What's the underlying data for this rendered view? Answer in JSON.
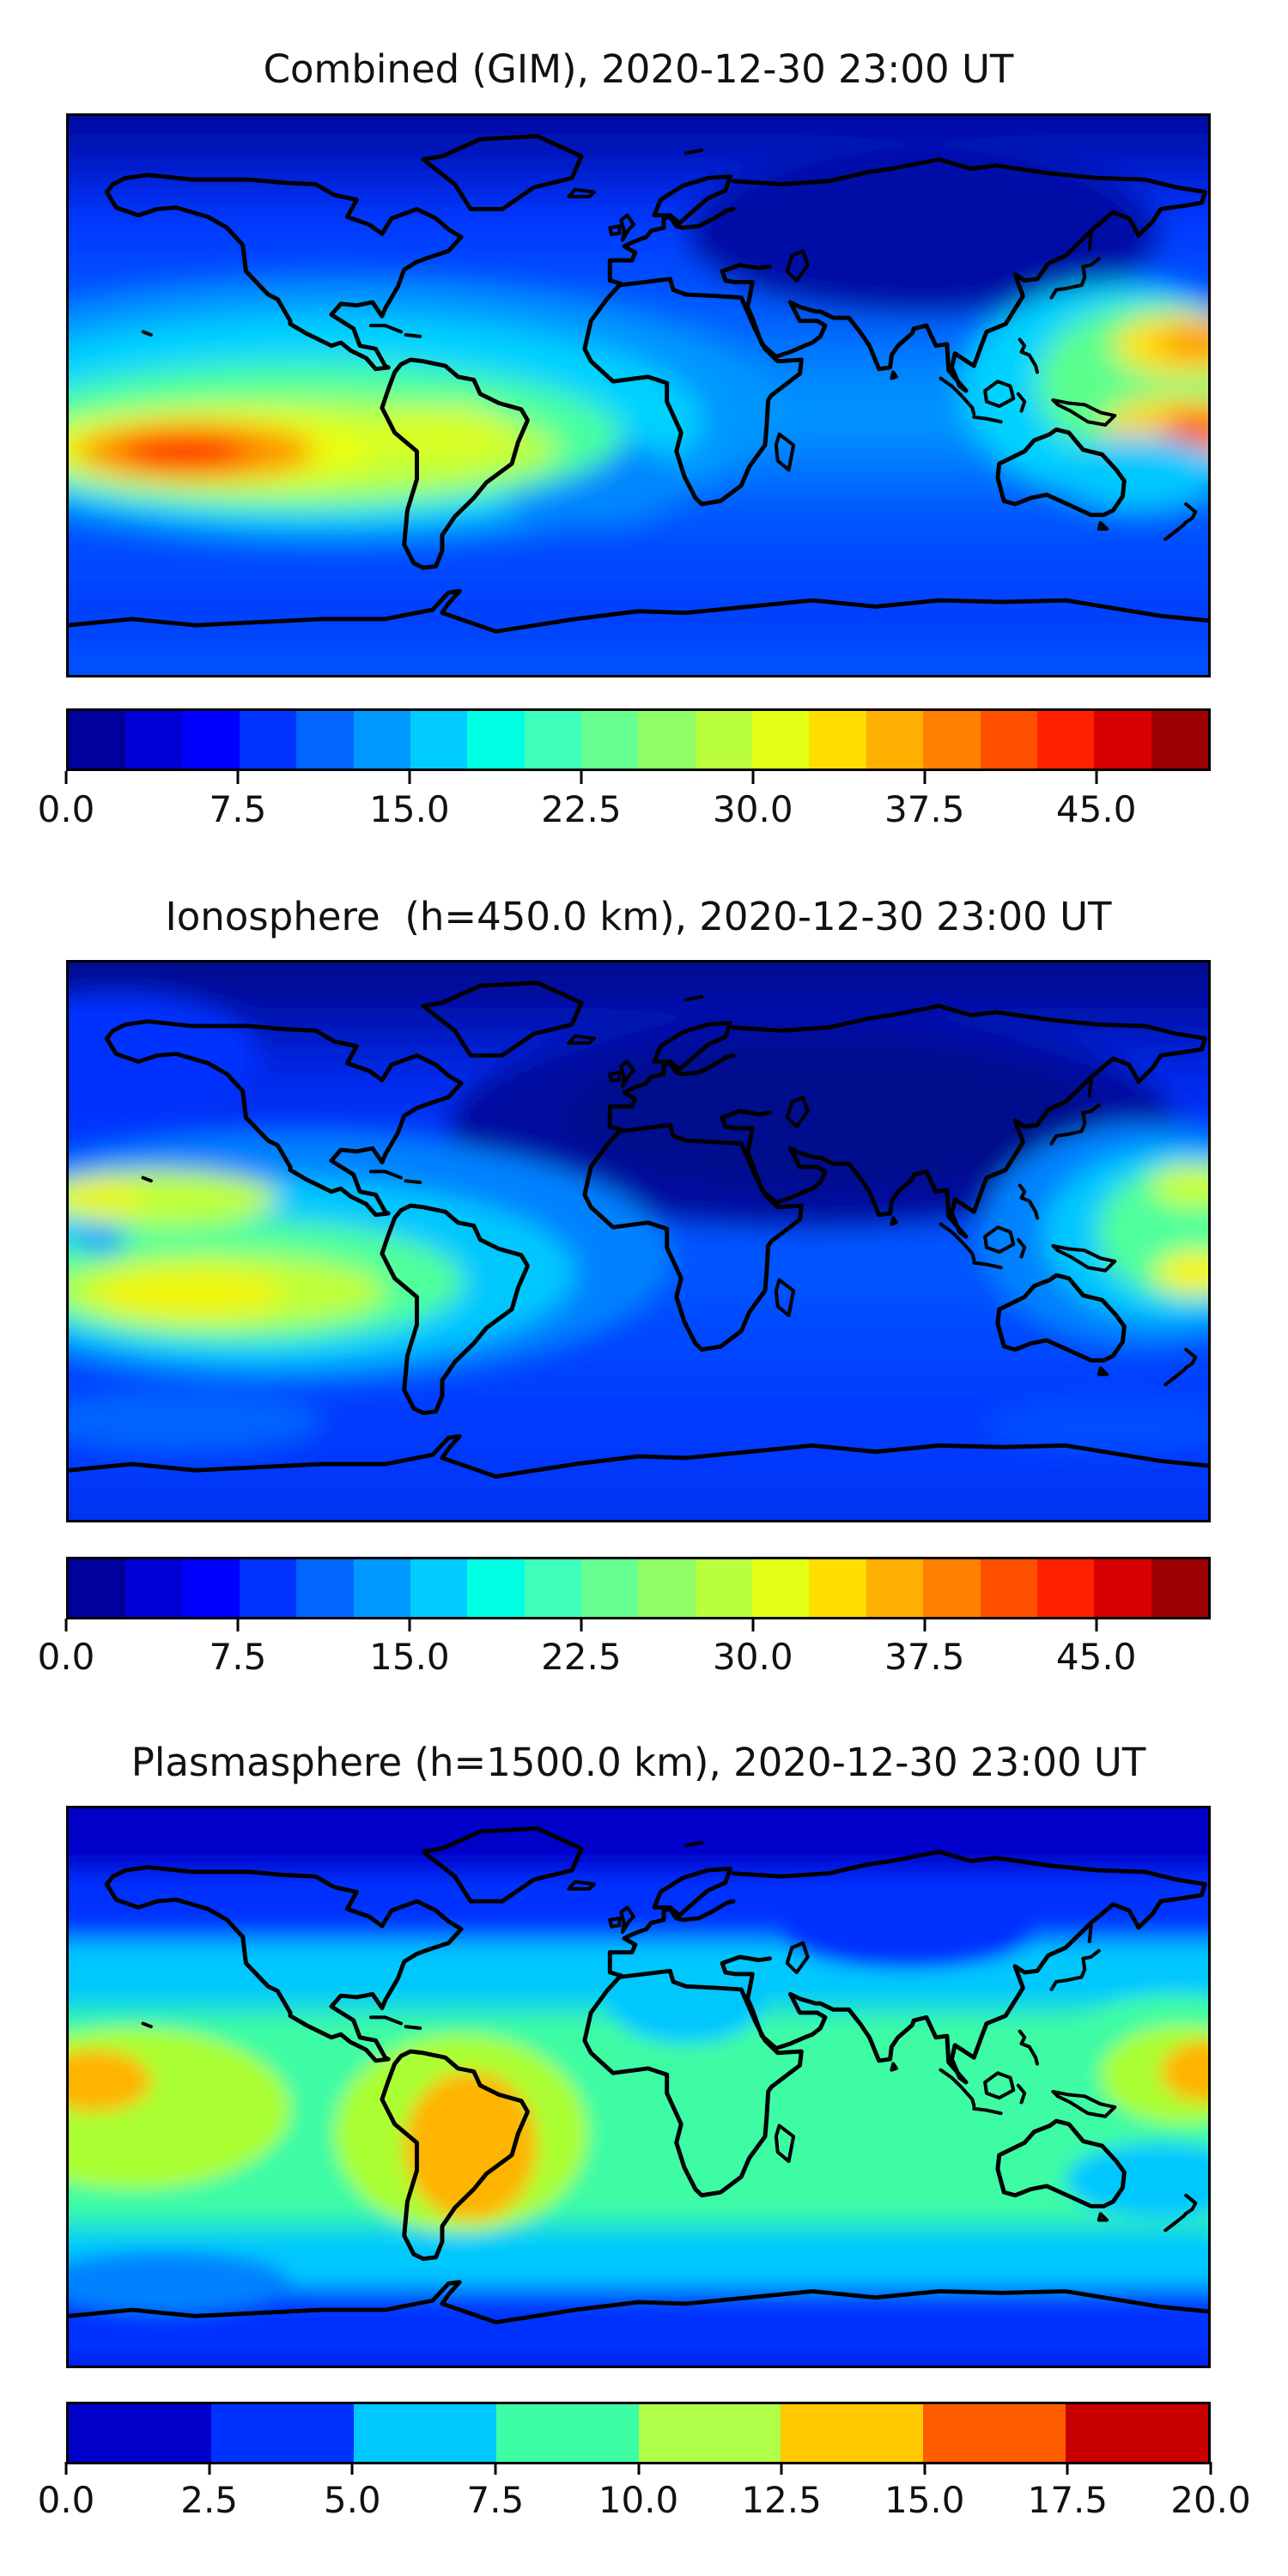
{
  "figure": {
    "background": "#ffffff",
    "colormap": "jet (discrete contourf bands)",
    "coastline_color": "#000000"
  },
  "panels": [
    {
      "id": "combined",
      "title": "Combined (GIM), 2020-12-30 23:00 UT",
      "colorbar": {
        "range": [
          0,
          50
        ],
        "ticks": [
          {
            "label": "0.0",
            "pos": 0.0
          },
          {
            "label": "7.5",
            "pos": 0.15
          },
          {
            "label": "15.0",
            "pos": 0.3
          },
          {
            "label": "22.5",
            "pos": 0.45
          },
          {
            "label": "30.0",
            "pos": 0.6
          },
          {
            "label": "37.5",
            "pos": 0.75
          },
          {
            "label": "45.0",
            "pos": 0.9
          }
        ],
        "segment_colors": [
          "#00009D",
          "#0000D6",
          "#0000FF",
          "#0033FF",
          "#0066FF",
          "#0099FF",
          "#00CCFF",
          "#00FFE2",
          "#3EFFB9",
          "#67FF90",
          "#90FF67",
          "#B9FF3E",
          "#E2FF15",
          "#FFDE00",
          "#FFAF00",
          "#FF8000",
          "#FF5000",
          "#FF2100",
          "#D70000",
          "#9D0000"
        ]
      }
    },
    {
      "id": "ionosphere",
      "title": "Ionosphere  (h=450.0 km), 2020-12-30 23:00 UT",
      "colorbar": {
        "range": [
          0,
          50
        ],
        "ticks": [
          {
            "label": "0.0",
            "pos": 0.0
          },
          {
            "label": "7.5",
            "pos": 0.15
          },
          {
            "label": "15.0",
            "pos": 0.3
          },
          {
            "label": "22.5",
            "pos": 0.45
          },
          {
            "label": "30.0",
            "pos": 0.6
          },
          {
            "label": "37.5",
            "pos": 0.75
          },
          {
            "label": "45.0",
            "pos": 0.9
          }
        ],
        "segment_colors": [
          "#00009D",
          "#0000D6",
          "#0000FF",
          "#0033FF",
          "#0066FF",
          "#0099FF",
          "#00CCFF",
          "#00FFE2",
          "#3EFFB9",
          "#67FF90",
          "#90FF67",
          "#B9FF3E",
          "#E2FF15",
          "#FFDE00",
          "#FFAF00",
          "#FF8000",
          "#FF5000",
          "#FF2100",
          "#D70000",
          "#9D0000"
        ]
      }
    },
    {
      "id": "plasmasphere",
      "title": "Plasmasphere (h=1500.0 km), 2020-12-30 23:00 UT",
      "colorbar": {
        "range": [
          0,
          20
        ],
        "ticks": [
          {
            "label": "0.0",
            "pos": 0.0
          },
          {
            "label": "2.5",
            "pos": 0.125
          },
          {
            "label": "5.0",
            "pos": 0.25
          },
          {
            "label": "7.5",
            "pos": 0.375
          },
          {
            "label": "10.0",
            "pos": 0.5
          },
          {
            "label": "12.5",
            "pos": 0.625
          },
          {
            "label": "15.0",
            "pos": 0.75
          },
          {
            "label": "17.5",
            "pos": 0.875
          },
          {
            "label": "20.0",
            "pos": 1.0
          }
        ],
        "segment_colors": [
          "#0000C8",
          "#0032FF",
          "#00C8FF",
          "#3CFCA4",
          "#AFFF48",
          "#FFC800",
          "#FF5C00",
          "#C80000"
        ]
      }
    }
  ],
  "chart_data": [
    {
      "type": "heatmap",
      "subtype": "filled-contour world map, equirectangular, lon -180..180, lat -90..90",
      "title": "Combined (GIM), 2020-12-30 23:00 UT",
      "colormap": "jet",
      "levels": {
        "min": 0,
        "max": 50,
        "step": 2.5
      },
      "colorbar_ticks": [
        0.0,
        7.5,
        15.0,
        22.5,
        30.0,
        37.5,
        45.0
      ],
      "grid_lons": [
        -150,
        -90,
        -30,
        30,
        90,
        150
      ],
      "grid_lats": [
        75,
        45,
        15,
        -15,
        -45,
        -75
      ],
      "values_estimated": [
        [
          5,
          4,
          3,
          2,
          3,
          4
        ],
        [
          9,
          7,
          5,
          4,
          4,
          6
        ],
        [
          25,
          14,
          6,
          5,
          7,
          22
        ],
        [
          45,
          33,
          25,
          8,
          8,
          35
        ],
        [
          15,
          12,
          10,
          8,
          8,
          12
        ],
        [
          8,
          7,
          6,
          5,
          5,
          7
        ]
      ],
      "hotspots": [
        {
          "lon": -145,
          "lat": -12,
          "value": 46,
          "note": "red equatorial-anomaly maximum, east Pacific"
        },
        {
          "lon": 172,
          "lat": -12,
          "value": 40,
          "note": "orange-red maximum near right edge"
        },
        {
          "lon": 175,
          "lat": 20,
          "value": 36,
          "note": "orange maximum, west Pacific north crest"
        }
      ]
    },
    {
      "type": "heatmap",
      "subtype": "filled-contour world map, equirectangular, lon -180..180, lat -90..90",
      "title": "Ionosphere  (h=450.0 km), 2020-12-30 23:00 UT",
      "colormap": "jet",
      "levels": {
        "min": 0,
        "max": 50,
        "step": 2.5
      },
      "colorbar_ticks": [
        0.0,
        7.5,
        15.0,
        22.5,
        30.0,
        37.5,
        45.0
      ],
      "grid_lons": [
        -150,
        -90,
        -30,
        30,
        90,
        150
      ],
      "grid_lats": [
        75,
        45,
        15,
        -15,
        -45,
        -75
      ],
      "values_estimated": [
        [
          4,
          3,
          2,
          1,
          2,
          3
        ],
        [
          6,
          5,
          3,
          2,
          2,
          4
        ],
        [
          18,
          9,
          4,
          2,
          4,
          15
        ],
        [
          30,
          22,
          15,
          4,
          6,
          26
        ],
        [
          10,
          8,
          6,
          5,
          5,
          9
        ],
        [
          6,
          5,
          4,
          4,
          4,
          6
        ]
      ],
      "hotspots": [
        {
          "lon": -170,
          "lat": -17,
          "value": 33,
          "note": "yellow band with small orange cores at left edge"
        },
        {
          "lon": 177,
          "lat": -12,
          "value": 31,
          "note": "yellow core near right edge"
        },
        {
          "lon": -152,
          "lat": 14,
          "value": 26,
          "note": "green-yellow northern crest, left side"
        }
      ]
    },
    {
      "type": "heatmap",
      "subtype": "filled-contour world map, equirectangular, lon -180..180, lat -90..90",
      "title": "Plasmasphere (h=1500.0 km), 2020-12-30 23:00 UT",
      "colormap": "jet",
      "levels": {
        "min": 0,
        "max": 20,
        "step": 2.5
      },
      "colorbar_ticks": [
        0.0,
        2.5,
        5.0,
        7.5,
        10.0,
        12.5,
        15.0,
        17.5,
        20.0
      ],
      "grid_lons": [
        -150,
        -90,
        -30,
        30,
        90,
        150
      ],
      "grid_lats": [
        75,
        45,
        15,
        -15,
        -45,
        -75
      ],
      "values_estimated": [
        [
          2,
          2,
          2,
          2,
          2,
          2
        ],
        [
          4,
          4,
          4,
          5,
          4,
          4
        ],
        [
          8,
          9,
          7,
          7,
          6,
          8
        ],
        [
          15,
          16,
          11,
          9,
          8,
          15
        ],
        [
          5,
          5,
          6,
          5,
          5,
          6
        ],
        [
          3,
          3,
          3,
          3,
          3,
          3
        ]
      ],
      "hotspots": [
        {
          "lon": -55,
          "lat": -20,
          "value": 14,
          "note": "orange maximum over Brazil / South America"
        },
        {
          "lon": -172,
          "lat": 0,
          "value": 14,
          "note": "orange patch at left edge"
        },
        {
          "lon": 178,
          "lat": 5,
          "value": 14,
          "note": "orange patch at right edge"
        }
      ]
    }
  ]
}
